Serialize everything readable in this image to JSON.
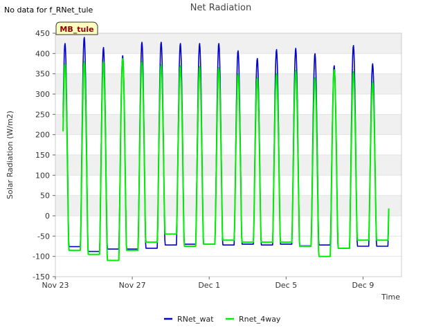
{
  "no_data_note": "No data for f_RNet_tule",
  "site_badge": "MB_tule",
  "chart_data": {
    "type": "line",
    "title": "Net Radiation",
    "xlabel": "Time",
    "ylabel": "Solar Radiation (W/m2)",
    "ylim": [
      -150,
      450
    ],
    "yticks": [
      -150,
      -100,
      -50,
      0,
      50,
      100,
      150,
      200,
      250,
      300,
      350,
      400,
      450
    ],
    "xlim": [
      0,
      18
    ],
    "xticks": [
      {
        "day": 0,
        "label": "Nov 23"
      },
      {
        "day": 4,
        "label": "Nov 27"
      },
      {
        "day": 8,
        "label": "Dec 1"
      },
      {
        "day": 12,
        "label": "Dec 5"
      },
      {
        "day": 16,
        "label": "Dec 9"
      }
    ],
    "grid": "horizontal bands",
    "legend_position": "bottom",
    "series": [
      {
        "name": "RNet_wat",
        "color": "#0000cc",
        "start_day": 0.4,
        "end_day": 17.35,
        "daily_peaks": [
          425,
          440,
          415,
          395,
          428,
          428,
          425,
          425,
          425,
          407,
          388,
          410,
          413,
          400,
          370,
          420,
          375
        ],
        "night_levels": [
          -78,
          -76,
          -88,
          -82,
          -82,
          -80,
          -72,
          -70,
          -70,
          -72,
          -70,
          -72,
          -70,
          -74,
          -72,
          -80,
          -75
        ]
      },
      {
        "name": "Rnet_4way",
        "color": "#00ee00",
        "start_day": 0.4,
        "end_day": 17.35,
        "daily_peaks": [
          375,
          380,
          380,
          388,
          380,
          372,
          370,
          368,
          365,
          350,
          340,
          350,
          358,
          340,
          360,
          355,
          330
        ],
        "night_levels": [
          -85,
          -85,
          -95,
          -110,
          -85,
          -65,
          -45,
          -75,
          -70,
          -60,
          -65,
          -65,
          -65,
          -75,
          -100,
          -80,
          -60
        ]
      }
    ]
  }
}
